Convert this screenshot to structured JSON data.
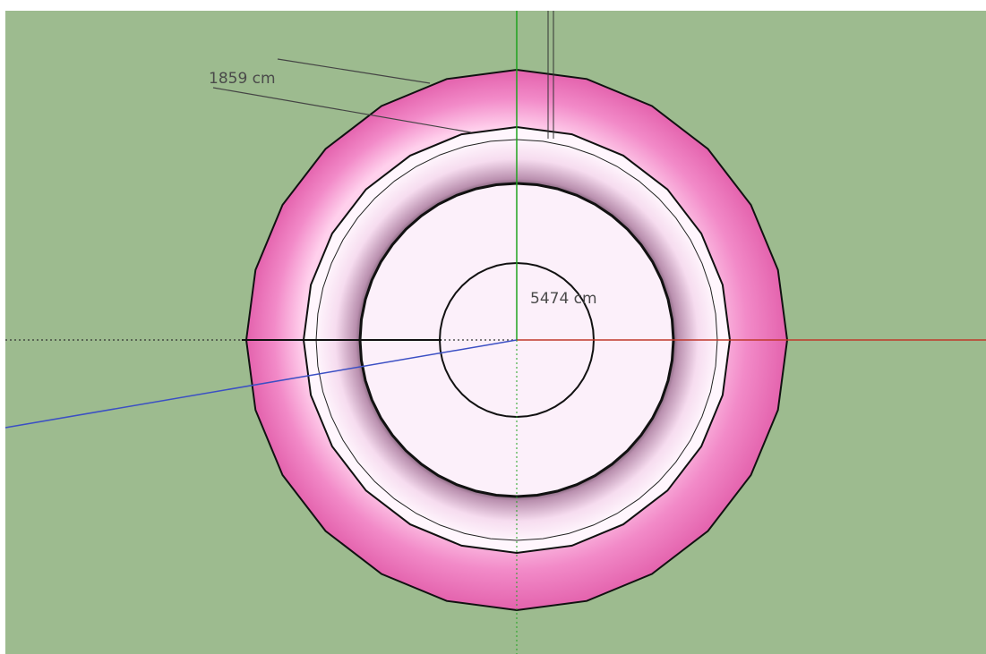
{
  "viewport": {
    "dimensions": [
      {
        "label": "1859 cm"
      },
      {
        "label": "5474 cm"
      }
    ]
  }
}
